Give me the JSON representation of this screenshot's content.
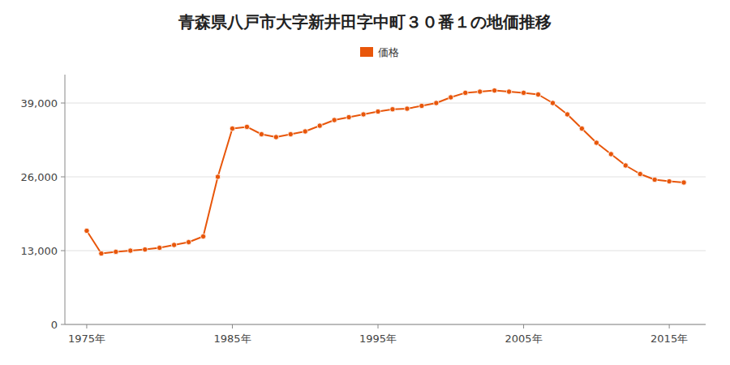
{
  "chart_data": {
    "type": "line",
    "title": "青森県八戸市大字新井田字中町３０番１の地価推移",
    "x": [
      1975,
      1976,
      1977,
      1978,
      1979,
      1980,
      1981,
      1982,
      1983,
      1984,
      1985,
      1986,
      1987,
      1988,
      1989,
      1990,
      1991,
      1992,
      1993,
      1994,
      1995,
      1996,
      1997,
      1998,
      1999,
      2000,
      2001,
      2002,
      2003,
      2004,
      2005,
      2006,
      2007,
      2008,
      2009,
      2010,
      2011,
      2012,
      2013,
      2014,
      2015,
      2016
    ],
    "series": [
      {
        "name": "価格",
        "color": "#E8560A",
        "marker": "circle",
        "values": [
          16500,
          12500,
          12800,
          13000,
          13200,
          13500,
          14000,
          14500,
          15500,
          26000,
          34500,
          34800,
          33500,
          33000,
          33500,
          34000,
          35000,
          36000,
          36500,
          37000,
          37500,
          37900,
          38000,
          38500,
          39000,
          40000,
          40800,
          41000,
          41200,
          41000,
          40800,
          40500,
          39000,
          37000,
          34500,
          32000,
          30000,
          28000,
          26500,
          25500,
          25200,
          25000
        ]
      }
    ],
    "xlim": [
      1973.5,
      2017.5
    ],
    "xticks": [
      {
        "value": 1975,
        "label": "1975年"
      },
      {
        "value": 1985,
        "label": "1985年"
      },
      {
        "value": 1995,
        "label": "1995年"
      },
      {
        "value": 2005,
        "label": "2005年"
      },
      {
        "value": 2015,
        "label": "2015年"
      }
    ],
    "ylim": [
      0,
      44000
    ],
    "yticks": [
      0,
      {
        "value": 13000,
        "label": "13,000"
      },
      {
        "value": 26000,
        "label": "26,000"
      },
      {
        "value": 39000,
        "label": "39,000"
      }
    ],
    "grid": true,
    "legend": "top"
  }
}
